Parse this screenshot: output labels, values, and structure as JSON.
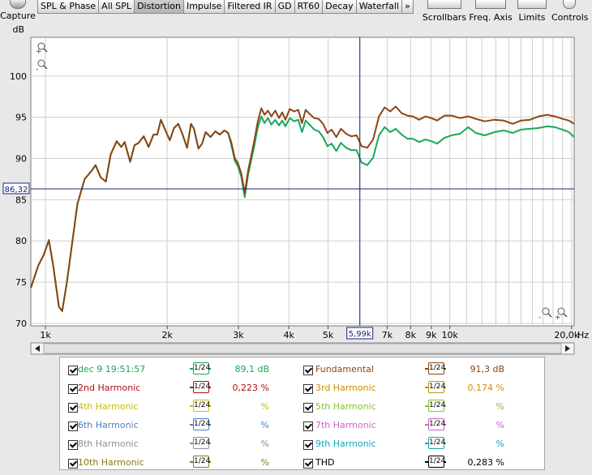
{
  "toolbar": {
    "capture_label": "Capture",
    "tabs": [
      "SPL & Phase",
      "All SPL",
      "Distortion",
      "Impulse",
      "Filtered IR",
      "GD",
      "RT60",
      "Decay",
      "Waterfall",
      "»"
    ],
    "active_tab": "Distortion",
    "right_buttons": [
      "Scrollbars",
      "Freq. Axis",
      "Limits",
      "Controls"
    ]
  },
  "cursor": {
    "y_readout": "86,32",
    "x_readout": "5,99k"
  },
  "hz_label": "Hz",
  "chart_data": {
    "type": "line",
    "ylabel": "dB",
    "ylim": [
      69.7,
      104.7
    ],
    "x_scale": "log",
    "xlim": [
      920,
      20300
    ],
    "y_ticks": [
      70,
      75,
      80,
      85,
      90,
      95,
      100
    ],
    "x_ticks": [
      {
        "value": 1000,
        "label": "1k"
      },
      {
        "value": 2000,
        "label": "2k"
      },
      {
        "value": 3000,
        "label": "3k"
      },
      {
        "value": 4000,
        "label": "4k"
      },
      {
        "value": 5000,
        "label": "5k"
      },
      {
        "value": 7000,
        "label": "7k"
      },
      {
        "value": 8000,
        "label": "8k"
      },
      {
        "value": 9000,
        "label": "9k"
      },
      {
        "value": 10000,
        "label": "10k"
      },
      {
        "value": 20000,
        "label": "20,0k"
      }
    ],
    "grid": true,
    "cursor": {
      "x": 5990,
      "y": 86.32
    },
    "series": [
      {
        "name": "Fundamental",
        "color": "#8b4513",
        "points": [
          [
            920,
            74.3
          ],
          [
            960,
            77
          ],
          [
            990,
            78.3
          ],
          [
            1020,
            80.1
          ],
          [
            1045,
            77
          ],
          [
            1080,
            72
          ],
          [
            1100,
            71.5
          ],
          [
            1130,
            75
          ],
          [
            1200,
            84.5
          ],
          [
            1250,
            87.5
          ],
          [
            1300,
            88.5
          ],
          [
            1330,
            89.2
          ],
          [
            1370,
            87.7
          ],
          [
            1410,
            87.2
          ],
          [
            1450,
            90.5
          ],
          [
            1500,
            92.1
          ],
          [
            1540,
            91.4
          ],
          [
            1570,
            92
          ],
          [
            1620,
            89.6
          ],
          [
            1660,
            91.6
          ],
          [
            1700,
            91.9
          ],
          [
            1750,
            92.7
          ],
          [
            1800,
            91.4
          ],
          [
            1850,
            92.9
          ],
          [
            1890,
            92.9
          ],
          [
            1930,
            94.7
          ],
          [
            1980,
            93.4
          ],
          [
            2030,
            92.2
          ],
          [
            2080,
            93.7
          ],
          [
            2130,
            94.2
          ],
          [
            2180,
            93
          ],
          [
            2240,
            91.3
          ],
          [
            2290,
            94.2
          ],
          [
            2330,
            93.6
          ],
          [
            2390,
            91.2
          ],
          [
            2440,
            91.8
          ],
          [
            2490,
            93.2
          ],
          [
            2560,
            92.6
          ],
          [
            2630,
            93.3
          ],
          [
            2700,
            92.9
          ],
          [
            2770,
            93.4
          ],
          [
            2830,
            93.1
          ],
          [
            2880,
            92
          ],
          [
            2940,
            90
          ],
          [
            2990,
            89.5
          ],
          [
            3050,
            88.2
          ],
          [
            3110,
            85.8
          ],
          [
            3170,
            88.5
          ],
          [
            3280,
            92
          ],
          [
            3350,
            94.5
          ],
          [
            3420,
            96.1
          ],
          [
            3480,
            95.3
          ],
          [
            3550,
            95.8
          ],
          [
            3620,
            95.1
          ],
          [
            3700,
            95.8
          ],
          [
            3780,
            94.9
          ],
          [
            3850,
            95.6
          ],
          [
            3920,
            94.7
          ],
          [
            4020,
            96
          ],
          [
            4120,
            95.7
          ],
          [
            4220,
            95.9
          ],
          [
            4310,
            94.3
          ],
          [
            4400,
            95.9
          ],
          [
            4500,
            95.4
          ],
          [
            4620,
            94.9
          ],
          [
            4740,
            94.8
          ],
          [
            4860,
            94.2
          ],
          [
            4980,
            93.1
          ],
          [
            5100,
            93.5
          ],
          [
            5240,
            92.6
          ],
          [
            5380,
            93.6
          ],
          [
            5540,
            93
          ],
          [
            5700,
            92.7
          ],
          [
            5880,
            92.8
          ],
          [
            6050,
            91.5
          ],
          [
            6250,
            91.3
          ],
          [
            6460,
            92.3
          ],
          [
            6680,
            95.1
          ],
          [
            6900,
            96.2
          ],
          [
            7120,
            95.7
          ],
          [
            7350,
            96.3
          ],
          [
            7600,
            95.5
          ],
          [
            7850,
            95.2
          ],
          [
            8100,
            95.1
          ],
          [
            8400,
            94.7
          ],
          [
            8700,
            95.1
          ],
          [
            9000,
            94.9
          ],
          [
            9300,
            94.6
          ],
          [
            9700,
            95.2
          ],
          [
            10100,
            95.2
          ],
          [
            10600,
            94.9
          ],
          [
            11100,
            95.1
          ],
          [
            11600,
            94.8
          ],
          [
            12200,
            94.5
          ],
          [
            12900,
            94.7
          ],
          [
            13600,
            94.6
          ],
          [
            14300,
            94.2
          ],
          [
            15000,
            94.6
          ],
          [
            15800,
            94.7
          ],
          [
            16600,
            95.1
          ],
          [
            17400,
            95.3
          ],
          [
            18200,
            95.1
          ],
          [
            19000,
            94.8
          ],
          [
            19700,
            94.6
          ],
          [
            20300,
            94.2
          ]
        ]
      },
      {
        "name": "dec 9 19:51:57",
        "color": "#18a858",
        "points": [
          [
            920,
            74.3
          ],
          [
            960,
            77
          ],
          [
            990,
            78.3
          ],
          [
            1020,
            80.1
          ],
          [
            1045,
            77
          ],
          [
            1080,
            72
          ],
          [
            1100,
            71.5
          ],
          [
            1130,
            75
          ],
          [
            1200,
            84.5
          ],
          [
            1250,
            87.5
          ],
          [
            1300,
            88.5
          ],
          [
            1330,
            89.2
          ],
          [
            1370,
            87.7
          ],
          [
            1410,
            87.2
          ],
          [
            1450,
            90.5
          ],
          [
            1500,
            92.1
          ],
          [
            1540,
            91.4
          ],
          [
            1570,
            92
          ],
          [
            1620,
            89.6
          ],
          [
            1660,
            91.6
          ],
          [
            1700,
            91.9
          ],
          [
            1750,
            92.7
          ],
          [
            1800,
            91.4
          ],
          [
            1850,
            92.9
          ],
          [
            1890,
            92.9
          ],
          [
            1930,
            94.7
          ],
          [
            1980,
            93.4
          ],
          [
            2030,
            92.2
          ],
          [
            2080,
            93.7
          ],
          [
            2130,
            94.2
          ],
          [
            2180,
            93
          ],
          [
            2240,
            91.3
          ],
          [
            2290,
            94.2
          ],
          [
            2330,
            93.6
          ],
          [
            2390,
            91.2
          ],
          [
            2440,
            91.8
          ],
          [
            2490,
            93.2
          ],
          [
            2560,
            92.6
          ],
          [
            2630,
            93.3
          ],
          [
            2700,
            92.9
          ],
          [
            2770,
            93.4
          ],
          [
            2830,
            93.1
          ],
          [
            2880,
            91.7
          ],
          [
            2940,
            89.7
          ],
          [
            2990,
            89.1
          ],
          [
            3050,
            87.8
          ],
          [
            3110,
            85.3
          ],
          [
            3170,
            88
          ],
          [
            3280,
            91.4
          ],
          [
            3350,
            93.8
          ],
          [
            3420,
            95.1
          ],
          [
            3480,
            94.3
          ],
          [
            3550,
            94.9
          ],
          [
            3620,
            94.1
          ],
          [
            3700,
            94.7
          ],
          [
            3780,
            94
          ],
          [
            3850,
            94.6
          ],
          [
            3920,
            93.9
          ],
          [
            4020,
            94.9
          ],
          [
            4120,
            94.5
          ],
          [
            4220,
            94.7
          ],
          [
            4310,
            93.2
          ],
          [
            4400,
            94.6
          ],
          [
            4500,
            94.1
          ],
          [
            4620,
            93.5
          ],
          [
            4740,
            93.3
          ],
          [
            4860,
            92.6
          ],
          [
            4980,
            91.5
          ],
          [
            5100,
            91.8
          ],
          [
            5240,
            90.9
          ],
          [
            5380,
            91.9
          ],
          [
            5540,
            91.3
          ],
          [
            5700,
            91
          ],
          [
            5880,
            91
          ],
          [
            6050,
            89.5
          ],
          [
            6250,
            89.2
          ],
          [
            6460,
            90.1
          ],
          [
            6680,
            92.8
          ],
          [
            6900,
            93.8
          ],
          [
            7120,
            93.2
          ],
          [
            7350,
            93.6
          ],
          [
            7600,
            92.9
          ],
          [
            7850,
            92.4
          ],
          [
            8100,
            92.4
          ],
          [
            8400,
            92
          ],
          [
            8700,
            92.3
          ],
          [
            9000,
            92.1
          ],
          [
            9300,
            91.8
          ],
          [
            9700,
            92.5
          ],
          [
            10100,
            92.8
          ],
          [
            10600,
            93
          ],
          [
            11100,
            93.8
          ],
          [
            11600,
            93.1
          ],
          [
            12200,
            92.8
          ],
          [
            12900,
            93.2
          ],
          [
            13600,
            93.4
          ],
          [
            14300,
            93.1
          ],
          [
            15000,
            93.5
          ],
          [
            15800,
            93.6
          ],
          [
            16600,
            93.7
          ],
          [
            17400,
            93.9
          ],
          [
            18200,
            93.8
          ],
          [
            19000,
            93.5
          ],
          [
            19700,
            93.2
          ],
          [
            20300,
            92.6
          ]
        ]
      }
    ]
  },
  "legend": {
    "rows": [
      [
        {
          "name": "dec 9 19:51:57",
          "color": "#18a858",
          "smooth": "1/24",
          "value": "89,1 dB"
        },
        {
          "name": "Fundamental",
          "color": "#8b4513",
          "smooth": "1/24",
          "value": "91,3 dB"
        }
      ],
      [
        {
          "name": "2nd Harmonic",
          "color": "#b01010",
          "smooth": "1/24",
          "value": "0,223 %"
        },
        {
          "name": "3rd Harmonic",
          "color": "#c8900a",
          "smooth": "1/24",
          "value": "0,174 %"
        }
      ],
      [
        {
          "name": "4th Harmonic",
          "color": "#c8c000",
          "smooth": "1/24",
          "value": "%"
        },
        {
          "name": "5th Harmonic",
          "color": "#8ac030",
          "smooth": "1/24",
          "value": "%"
        }
      ],
      [
        {
          "name": "6th Harmonic",
          "color": "#4a80c8",
          "smooth": "1/24",
          "value": "%"
        },
        {
          "name": "7th Harmonic",
          "color": "#d060c8",
          "smooth": "1/24",
          "value": "%"
        }
      ],
      [
        {
          "name": "8th Harmonic",
          "color": "#909090",
          "smooth": "1/24",
          "value": "%"
        },
        {
          "name": "9th Harmonic",
          "color": "#10a8b8",
          "smooth": "1/24",
          "value": "%"
        }
      ],
      [
        {
          "name": "10th Harmonic",
          "color": "#8a7a10",
          "smooth": "1/24",
          "value": "%"
        },
        {
          "name": "THD",
          "color": "#000000",
          "smooth": "1/24",
          "value": "0,283 %"
        }
      ]
    ]
  }
}
